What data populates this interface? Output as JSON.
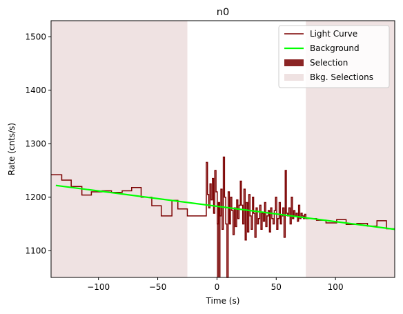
{
  "chart_data": {
    "type": "line",
    "title": "n0",
    "xlabel": "Time (s)",
    "ylabel": "Rate (cnts/s)",
    "xlim": [
      -140,
      150
    ],
    "ylim": [
      1050,
      1530
    ],
    "xticks": [
      -100,
      -50,
      0,
      50,
      100
    ],
    "yticks": [
      1100,
      1200,
      1300,
      1400,
      1500
    ],
    "grid": false,
    "legend_position": "top-right",
    "legend": [
      "Light Curve",
      "Background",
      "Selection",
      "Bkg. Selections"
    ],
    "colors": {
      "light_curve": "#7b0000",
      "background": "#00ff00",
      "selection": "#8b2525",
      "bkg_selection": "#efe2e2"
    },
    "series": [
      {
        "name": "Light Curve",
        "style": "step",
        "points": [
          [
            -140,
            1242
          ],
          [
            -131,
            1232
          ],
          [
            -123,
            1220
          ],
          [
            -114,
            1204
          ],
          [
            -106,
            1210
          ],
          [
            -97,
            1212
          ],
          [
            -89,
            1209
          ],
          [
            -80,
            1212
          ],
          [
            -72,
            1218
          ],
          [
            -64,
            1200
          ],
          [
            -55,
            1184
          ],
          [
            -47,
            1165
          ],
          [
            -38,
            1194
          ],
          [
            -33,
            1178
          ],
          [
            -25,
            1165
          ],
          [
            -17,
            1165
          ],
          [
            -9,
            1165
          ]
        ],
        "dense_segment": {
          "x_start": -9,
          "x_end": 75,
          "values": [
            1265,
            1205,
            1180,
            1225,
            1195,
            1235,
            1170,
            1250,
            1210,
            1150,
            1190,
            1165,
            1215,
            1140,
            1275,
            1200,
            1150,
            1050,
            1210,
            1150,
            1200,
            1175,
            1130,
            1180,
            1145,
            1195,
            1160,
            1185,
            1230,
            1185,
            1150,
            1215,
            1120,
            1190,
            1135,
            1205,
            1165,
            1140,
            1200,
            1170,
            1125,
            1180,
            1150,
            1160,
            1185,
            1140,
            1170,
            1155,
            1190,
            1145,
            1165,
            1175,
            1135,
            1180,
            1160,
            1150,
            1175,
            1200,
            1140,
            1160,
            1190,
            1150,
            1165,
            1180,
            1125,
            1250,
            1170,
            1165,
            1180,
            1150,
            1200,
            1160,
            1175,
            1165,
            1170,
            1155,
            1185,
            1160,
            1170,
            1165,
            1160,
            1168
          ]
        },
        "tail_points": [
          [
            75,
            1160
          ],
          [
            84,
            1157
          ],
          [
            92,
            1152
          ],
          [
            101,
            1158
          ],
          [
            109,
            1149
          ],
          [
            118,
            1151
          ],
          [
            127,
            1146
          ],
          [
            135,
            1156
          ],
          [
            143,
            1141
          ],
          [
            150,
            1141
          ]
        ]
      },
      {
        "name": "Background",
        "style": "line",
        "x": [
          -136,
          150
        ],
        "y": [
          1222,
          1140
        ]
      }
    ],
    "selection": {
      "x": [
        0,
        3
      ]
    },
    "bkg_selections": [
      {
        "x": [
          -140,
          -25
        ]
      },
      {
        "x": [
          75,
          150
        ]
      }
    ]
  }
}
